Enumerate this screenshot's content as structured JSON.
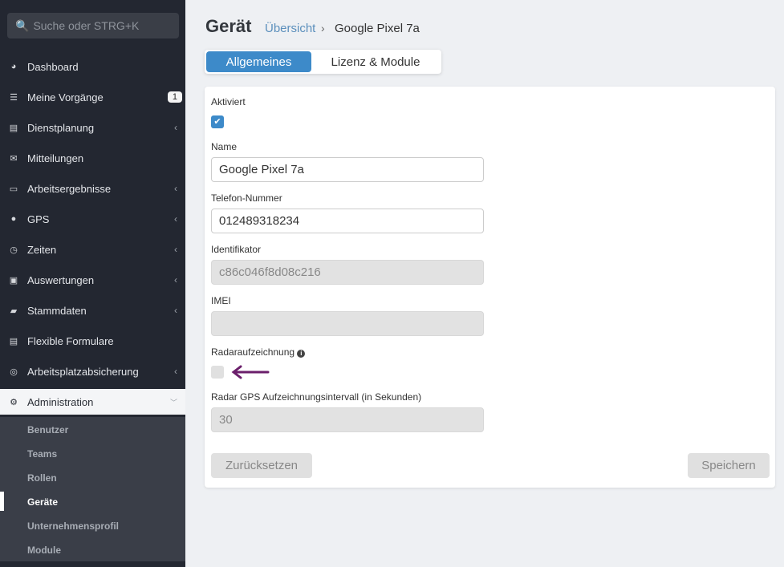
{
  "sidebar": {
    "search_placeholder": "Suche oder STRG+K",
    "items": [
      {
        "label": "Dashboard",
        "icon": "dashboard-icon"
      },
      {
        "label": "Meine Vorgänge",
        "icon": "list-icon",
        "badge": "1"
      },
      {
        "label": "Dienstplanung",
        "icon": "schedule-icon"
      },
      {
        "label": "Mitteilungen",
        "icon": "envelope-icon"
      },
      {
        "label": "Arbeitsergebnisse",
        "icon": "monitor-icon"
      },
      {
        "label": "GPS",
        "icon": "map-marker-icon"
      },
      {
        "label": "Zeiten",
        "icon": "clock-icon"
      },
      {
        "label": "Auswertungen",
        "icon": "report-icon"
      },
      {
        "label": "Stammdaten",
        "icon": "book-icon"
      },
      {
        "label": "Flexible Formulare",
        "icon": "form-icon"
      },
      {
        "label": "Arbeitsplatzabsicherung",
        "icon": "lifebuoy-icon"
      },
      {
        "label": "Administration",
        "icon": "gears-icon"
      }
    ],
    "subitems": [
      "Benutzer",
      "Teams",
      "Rollen",
      "Geräte",
      "Unternehmensprofil",
      "Module"
    ]
  },
  "header": {
    "title": "Gerät",
    "breadcrumb_link": "Übersicht",
    "breadcrumb_current": "Google Pixel 7a"
  },
  "tabs": [
    "Allgemeines",
    "Lizenz & Module"
  ],
  "form": {
    "activated_label": "Aktiviert",
    "activated": true,
    "name_label": "Name",
    "name_value": "Google Pixel 7a",
    "phone_label": "Telefon-Nummer",
    "phone_value": "012489318234",
    "id_label": "Identifikator",
    "id_value": "c86c046f8d08c216",
    "imei_label": "IMEI",
    "imei_value": "",
    "radar_label": "Radaraufzeichnung",
    "radar": false,
    "interval_label": "Radar GPS Aufzeichnungsintervall (in Sekunden)",
    "interval_value": "30",
    "reset_label": "Zurücksetzen",
    "save_label": "Speichern"
  },
  "colors": {
    "accent": "#3d8ac9",
    "arrow": "#6b1f6b"
  }
}
